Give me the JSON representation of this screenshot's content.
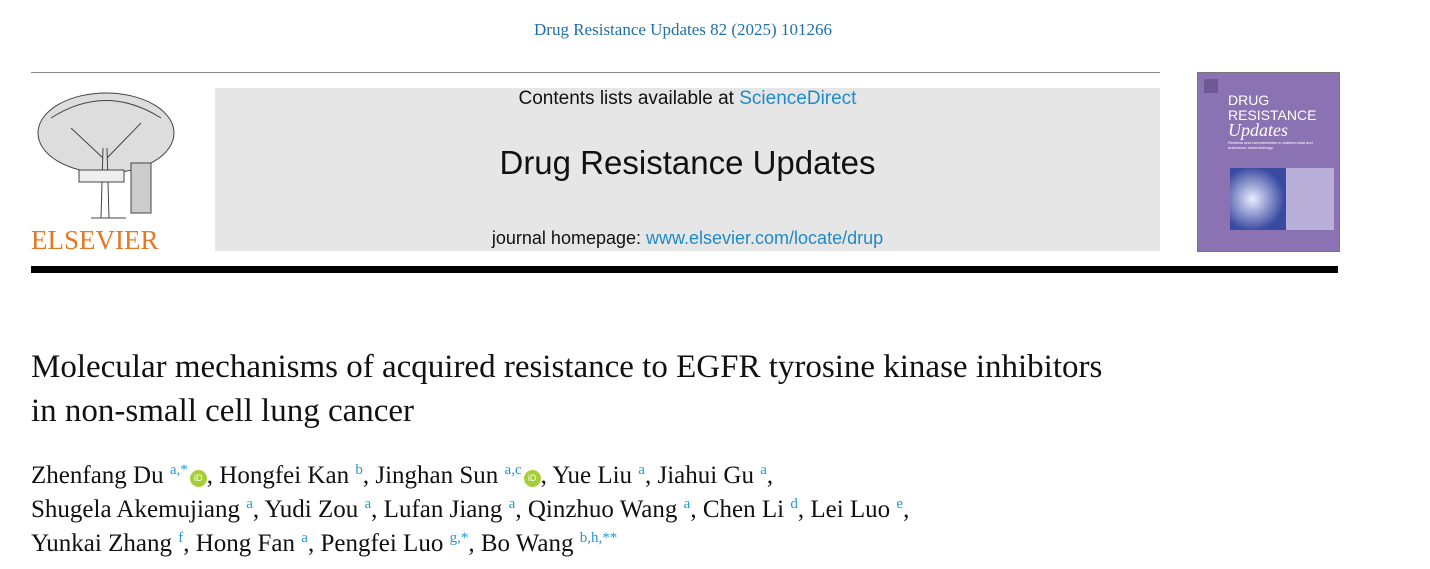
{
  "citation": "Drug Resistance Updates 82 (2025) 101266",
  "publisher": {
    "logo_text": "ELSEVIER",
    "logo_color": "#e87722"
  },
  "masthead": {
    "contents_prefix": "Contents lists available at ",
    "contents_link": "ScienceDirect",
    "journal_name": "Drug Resistance Updates",
    "homepage_prefix": "journal homepage: ",
    "homepage_link": "www.elsevier.com/locate/drup"
  },
  "cover": {
    "line1": "DRUG",
    "line2": "RESISTANCE",
    "line3": "Updates",
    "subtitle": "Reviews and commentaries in antimicrobial and anticancer chemotherapy",
    "color": "#8b72b3"
  },
  "article": {
    "title": "Molecular mechanisms of acquired resistance to EGFR tyrosine kinase inhibitors in non-small cell lung cancer"
  },
  "authors": [
    {
      "name": "Zhenfang Du",
      "sup": "a,*",
      "orcid": true
    },
    {
      "name": "Hongfei Kan",
      "sup": "b"
    },
    {
      "name": "Jinghan Sun",
      "sup": "a,c",
      "orcid": true
    },
    {
      "name": "Yue Liu",
      "sup": "a"
    },
    {
      "name": "Jiahui Gu",
      "sup": "a",
      "break": true
    },
    {
      "name": "Shugela Akemujiang",
      "sup": "a"
    },
    {
      "name": "Yudi Zou",
      "sup": "a"
    },
    {
      "name": "Lufan Jiang",
      "sup": "a"
    },
    {
      "name": "Qinzhuo Wang",
      "sup": "a"
    },
    {
      "name": "Chen Li",
      "sup": "d"
    },
    {
      "name": "Lei Luo",
      "sup": "e",
      "break": true
    },
    {
      "name": "Yunkai Zhang",
      "sup": "f"
    },
    {
      "name": "Hong Fan",
      "sup": "a"
    },
    {
      "name": "Pengfei Luo",
      "sup": "g,*"
    },
    {
      "name": "Bo Wang",
      "sup": "b,h,**"
    }
  ],
  "orcid_label": "iD"
}
